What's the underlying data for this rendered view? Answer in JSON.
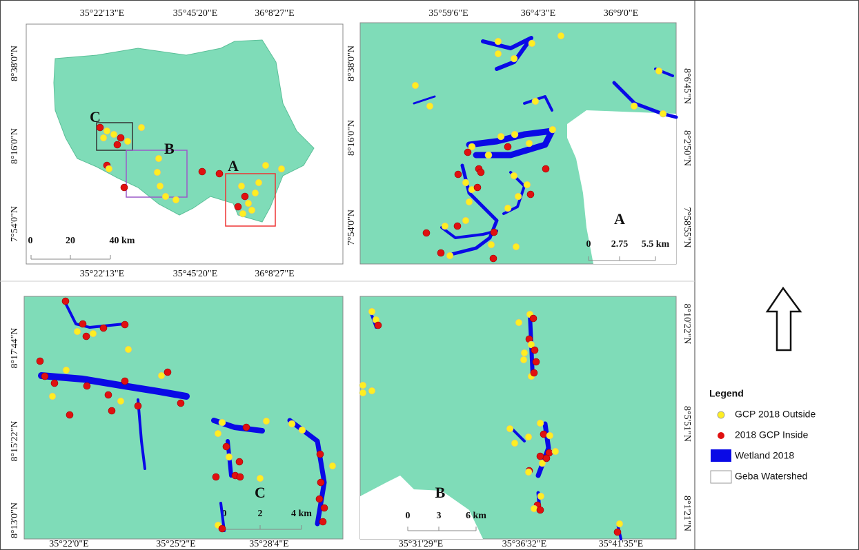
{
  "overview": {
    "top_ticks": [
      "35°22'13\"E",
      "35°45'20\"E",
      "36°8'27\"E"
    ],
    "bottom_ticks": [
      "35°22'13\"E",
      "35°45'20\"E",
      "36°8'27\"E"
    ],
    "left_ticks": [
      "8°38'0\"N",
      "8°16'0\"N",
      "7°54'0\"N"
    ],
    "area_labels": [
      "C",
      "B",
      "A"
    ],
    "scale": [
      "0",
      "20",
      "40 km"
    ]
  },
  "panel_a": {
    "top_ticks": [
      "35°59'6\"E",
      "36°4'3\"E",
      "36°9'0\"E"
    ],
    "left_ticks": [
      "8°38'0\"N",
      "8°16'0\"N",
      "7°54'0\"N"
    ],
    "right_ticks": [
      "8°6'45\"N",
      "8°2'50\"N",
      "7°58'55\"N"
    ],
    "label": "A",
    "scale": [
      "0",
      "2.75",
      "5.5 km"
    ]
  },
  "panel_c": {
    "left_ticks": [
      "8°17'44\"N",
      "8°15'22\"N",
      "8°13'0\"N"
    ],
    "bottom_ticks": [
      "35°22'0\"E",
      "35°25'2\"E",
      "35°28'4\"E"
    ],
    "label": "C",
    "scale": [
      "0",
      "2",
      "4 km"
    ]
  },
  "panel_b": {
    "right_ticks": [
      "8°10'22\"N",
      "8°5'51\"N",
      "8°1'21\"N"
    ],
    "bottom_ticks": [
      "35°31'29\"E",
      "35°36'32\"E",
      "35°41'35\"E"
    ],
    "label": "B",
    "scale": [
      "0",
      "3",
      "6 km"
    ]
  },
  "legend": {
    "title": "Legend",
    "items": [
      "GCP 2018 Outside",
      "2018 GCP Inside",
      "Wetland 2018",
      "Geba Watershed"
    ]
  }
}
